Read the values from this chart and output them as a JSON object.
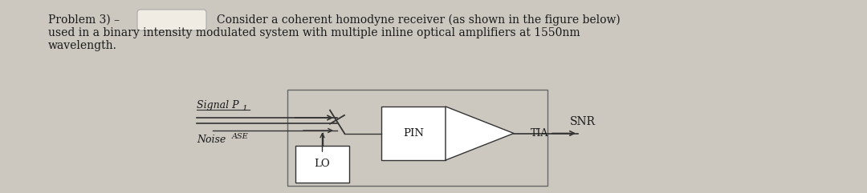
{
  "bg_color": "#ccc8c0",
  "text_color": "#1a1a1a",
  "highlight_color": "#e8e0d8",
  "line_color": "#333333",
  "signal_label": "Signal P",
  "signal_subscript": "1",
  "noise_label": "Noise ",
  "noise_subscript": "ASE",
  "pin_label": "PIN",
  "tia_label": "TIA",
  "lo_label": "LO",
  "snr_label": "SNR",
  "fig_width": 10.8,
  "fig_height": 2.41,
  "dpi": 100,
  "text_lines": [
    "Problem 3) –",
    "Consider a coherent homodyne receiver (as shown in the figure below)",
    "used in a binary intensity modulated system with multiple inline optical amplifiers at 1550nm",
    "wavelength."
  ]
}
